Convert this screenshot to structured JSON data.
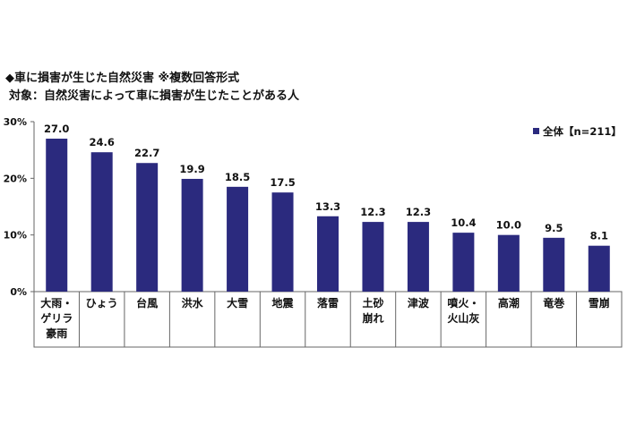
{
  "title": "◆車に損害が生じた自然災害 ※複数回答形式",
  "subtitle": "対象：自然災害によって車に損害が生じたことがある人",
  "colors": {
    "bar": "#2b2a7e",
    "axis": "#666666",
    "grid": "#999999"
  },
  "chart_data": {
    "type": "bar",
    "title": "",
    "xlabel": "",
    "ylabel": "",
    "ylim": [
      0,
      30
    ],
    "yticks": [
      "0%",
      "10%",
      "20%",
      "30%"
    ],
    "grid": false,
    "legend_position": "top-right",
    "categories": [
      "大雨・\nゲリラ\n豪雨",
      "ひょう",
      "台風",
      "洪水",
      "大雪",
      "地震",
      "落雷",
      "土砂\n崩れ",
      "津波",
      "噴火・\n火山灰",
      "高潮",
      "竜巻",
      "雪崩"
    ],
    "series": [
      {
        "name": "全体【n=211】",
        "values": [
          27.0,
          24.6,
          22.7,
          19.9,
          18.5,
          17.5,
          13.3,
          12.3,
          12.3,
          10.4,
          10.0,
          9.5,
          8.1
        ],
        "labels": [
          "27.0",
          "24.6",
          "22.7",
          "19.9",
          "18.5",
          "17.5",
          "13.3",
          "12.3",
          "12.3",
          "10.4",
          "10.0",
          "9.5",
          "8.1"
        ]
      }
    ]
  }
}
